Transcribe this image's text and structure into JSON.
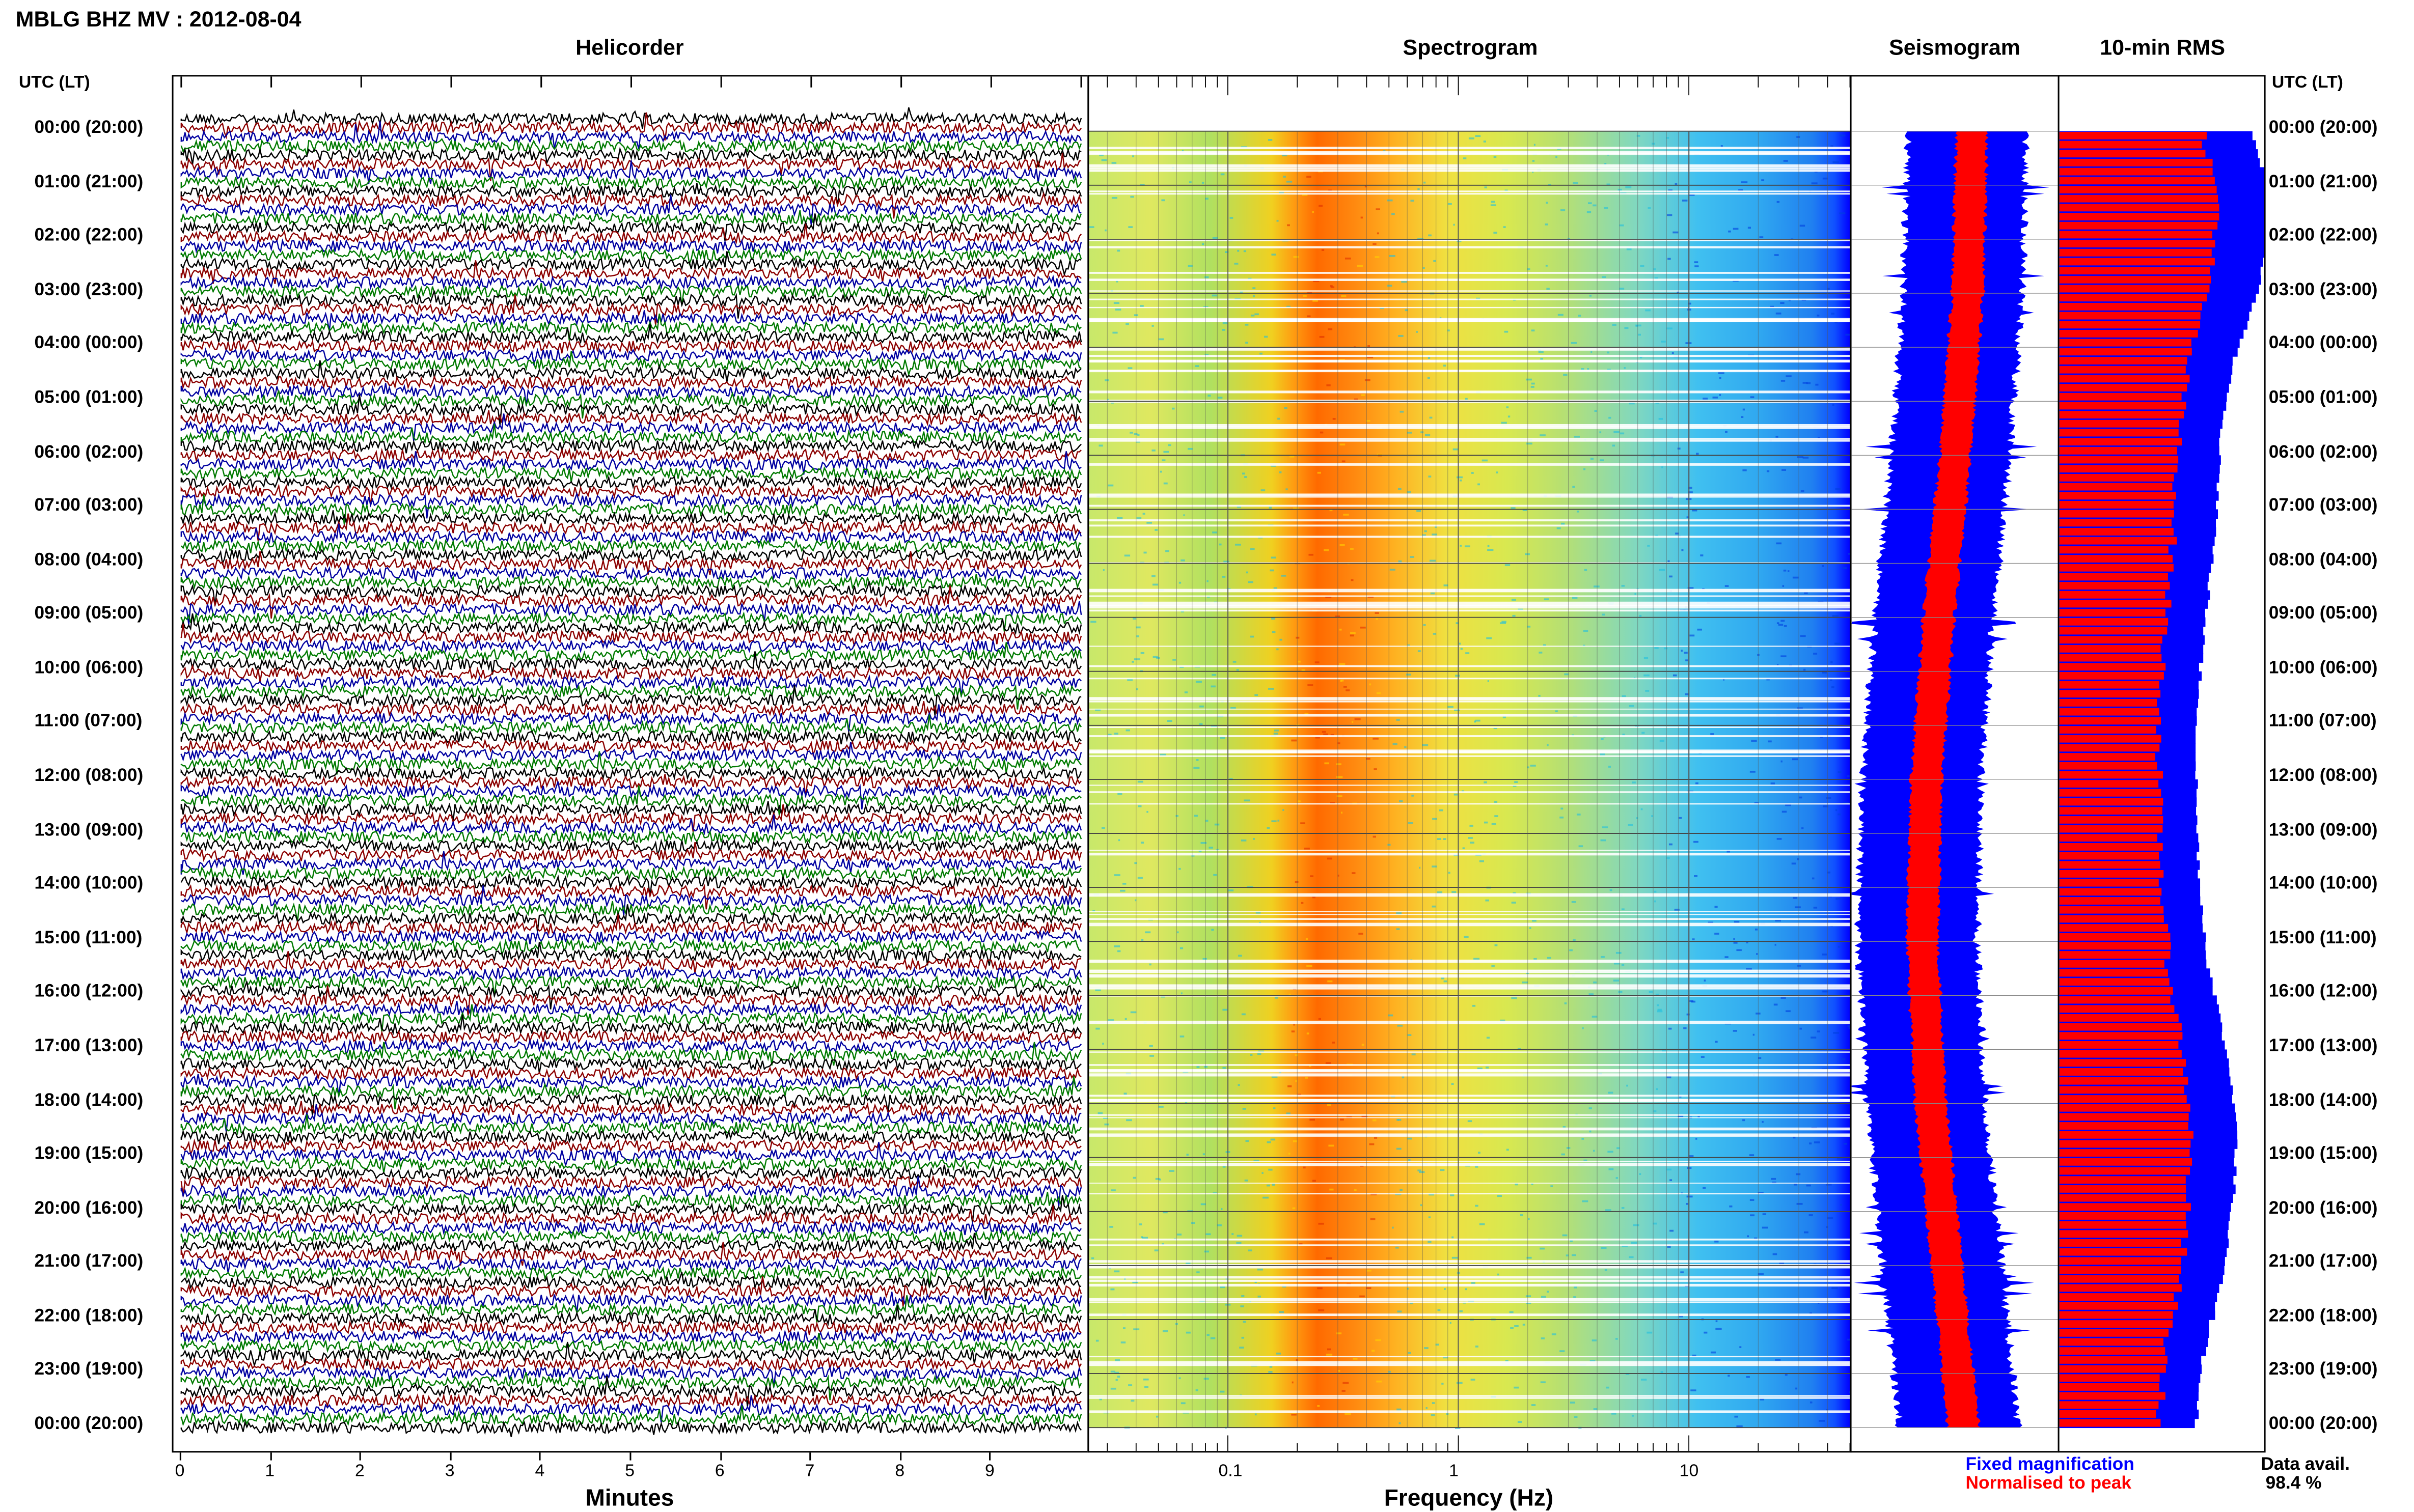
{
  "header": {
    "title": "MBLG BHZ MV : 2012-08-04"
  },
  "panels": {
    "helicorder": "Helicorder",
    "spectrogram": "Spectrogram",
    "seismogram": "Seismogram",
    "rms": "10-min RMS"
  },
  "time_axis": {
    "label": "UTC (LT)",
    "ticks": [
      "00:00 (20:00)",
      "01:00 (21:00)",
      "02:00 (22:00)",
      "03:00 (23:00)",
      "04:00 (00:00)",
      "05:00 (01:00)",
      "06:00 (02:00)",
      "07:00 (03:00)",
      "08:00 (04:00)",
      "09:00 (05:00)",
      "10:00 (06:00)",
      "11:00 (07:00)",
      "12:00 (08:00)",
      "13:00 (09:00)",
      "14:00 (10:00)",
      "15:00 (11:00)",
      "16:00 (12:00)",
      "17:00 (13:00)",
      "18:00 (14:00)",
      "19:00 (15:00)",
      "20:00 (16:00)",
      "21:00 (17:00)",
      "22:00 (18:00)",
      "23:00 (19:00)",
      "00:00 (20:00)"
    ]
  },
  "legend": {
    "fixed": "Fixed magnification",
    "normalised": "Normalised to peak",
    "avail_label": "Data avail.",
    "avail_value": "98.4 %"
  },
  "colors": {
    "blue": "#0000ff",
    "red": "#ff0000",
    "helicorder_traces": [
      "#000000",
      "#8b0000",
      "#0000a0",
      "#007a00"
    ]
  },
  "chart_data": [
    {
      "type": "line",
      "title": "Helicorder",
      "xlabel": "Minutes",
      "x_ticks": [
        "0",
        "1",
        "2",
        "3",
        "4",
        "5",
        "6",
        "7",
        "8",
        "9"
      ],
      "xlim": [
        0,
        10
      ],
      "rows": 145,
      "trace_colors": [
        "black",
        "darkred",
        "blue",
        "green"
      ]
    },
    {
      "type": "heatmap",
      "title": "Spectrogram",
      "xlabel": "Frequency (Hz)",
      "x_scale": "log",
      "x_ticks": [
        "0.1",
        "1",
        "10"
      ],
      "xlim": [
        0.025,
        50
      ],
      "peak_band_hz": [
        0.2,
        0.4
      ]
    },
    {
      "type": "area",
      "title": "Seismogram",
      "series": [
        {
          "name": "Fixed magnification",
          "color": "#0000ff",
          "envelope_centre": [
            0.56,
            0.54,
            0.48,
            0.4,
            0.34,
            0.32,
            0.36,
            0.44,
            0.52
          ]
        },
        {
          "name": "Normalised to peak",
          "color": "#ff0000"
        }
      ]
    },
    {
      "type": "bar",
      "title": "10-min RMS",
      "orientation": "horizontal",
      "series": [
        {
          "name": "Fixed magnification",
          "color": "#0000ff"
        },
        {
          "name": "Normalised to peak",
          "color": "#ff0000"
        }
      ]
    }
  ]
}
